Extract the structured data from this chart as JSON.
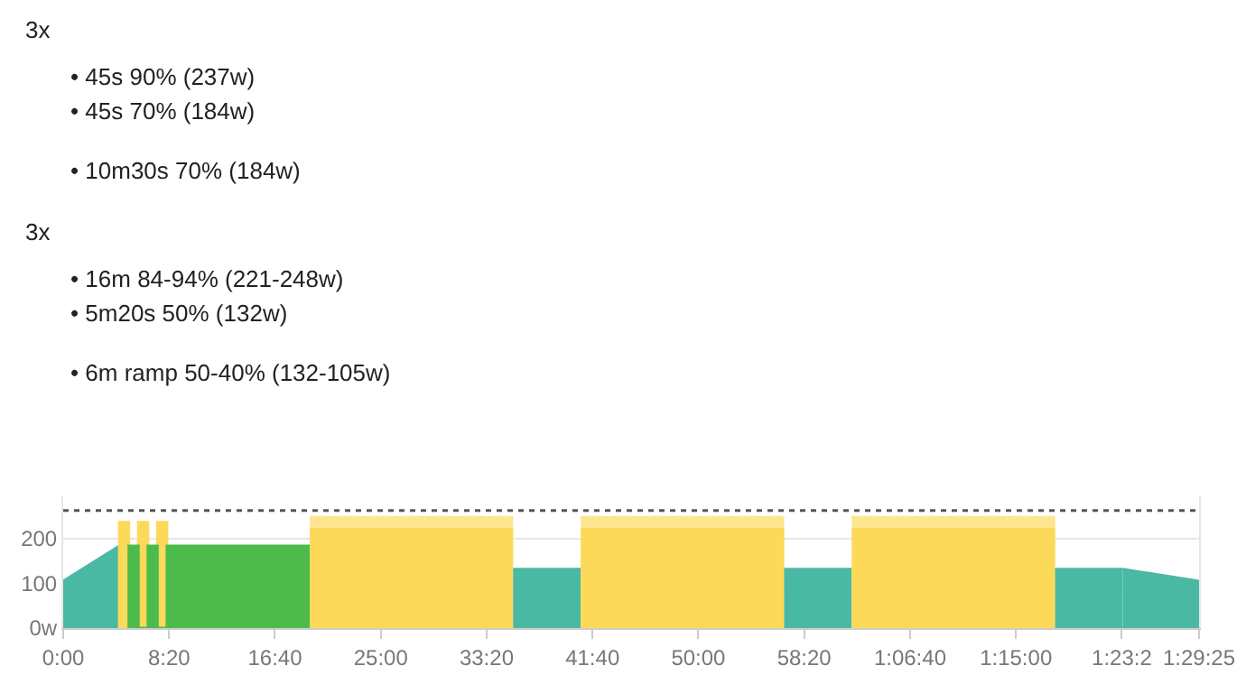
{
  "chart_data": {
    "type": "area",
    "annotations": [
      "3x",
      "• 45s 90% (237w)",
      "• 45s 70% (184w)",
      "• 10m30s 70% (184w)",
      "3x",
      "• 16m 84-94% (221-248w)",
      "• 5m20s 50% (132w)",
      "• 6m ramp 50-40% (132-105w)"
    ],
    "series": [
      {
        "color": "#4ab9a3",
        "x": [
          0,
          4.4167
        ],
        "values": [
          105,
          184
        ]
      },
      {
        "color": "#fdd95a",
        "x": [
          4.4167,
          4.4167,
          5.1667,
          5.1667,
          5.9167,
          5.9167,
          6.6667,
          6.6667,
          7.4167,
          7.4167,
          8.1667,
          8.1667
        ],
        "values": [
          0,
          237,
          237,
          0,
          0,
          237,
          237,
          0,
          0,
          237,
          237,
          0
        ]
      },
      {
        "color": "#4cbb4c",
        "x": [
          5.1667,
          5.1667,
          5.9167,
          5.9167,
          6.6667,
          6.6667,
          7.4167,
          7.4167,
          8.1667,
          8.1667,
          8.9167,
          19.4167,
          19.4167
        ],
        "values": [
          0,
          184,
          184,
          0,
          0,
          184,
          184,
          0,
          0,
          184,
          184,
          184,
          0
        ]
      },
      {
        "color": "#fde68f",
        "x": [
          19.4167,
          35.4167
        ],
        "values": [
          248,
          248
        ]
      },
      {
        "color": "#fdd95a",
        "x": [
          19.4167,
          35.4167
        ],
        "values": [
          221,
          221
        ]
      },
      {
        "color": "#4ab9a3",
        "x": [
          35.4167,
          40.75
        ],
        "values": [
          132,
          132
        ]
      },
      {
        "color": "#fde68f",
        "x": [
          40.75,
          56.75
        ],
        "values": [
          248,
          248
        ]
      },
      {
        "color": "#fdd95a",
        "x": [
          40.75,
          56.75
        ],
        "values": [
          221,
          221
        ]
      },
      {
        "color": "#4ab9a3",
        "x": [
          56.75,
          62.0833
        ],
        "values": [
          132,
          132
        ]
      },
      {
        "color": "#fde68f",
        "x": [
          62.0833,
          78.0833
        ],
        "values": [
          248,
          248
        ]
      },
      {
        "color": "#fdd95a",
        "x": [
          62.0833,
          78.0833
        ],
        "values": [
          221,
          221
        ]
      },
      {
        "color": "#4ab9a3",
        "x": [
          78.0833,
          83.4167
        ],
        "values": [
          132,
          132
        ]
      },
      {
        "color": "#4ab9a3",
        "x": [
          83.4167,
          89.4167
        ],
        "values": [
          132,
          105
        ]
      }
    ],
    "xlim": [
      0,
      89.4167
    ],
    "xticks": [
      {
        "value": 0,
        "label": "0:00"
      },
      {
        "value": 8.3333,
        "label": "8:20"
      },
      {
        "value": 16.6667,
        "label": "16:40"
      },
      {
        "value": 25,
        "label": "25:00"
      },
      {
        "value": 33.3333,
        "label": "33:20"
      },
      {
        "value": 41.6667,
        "label": "41:40"
      },
      {
        "value": 50,
        "label": "50:00"
      },
      {
        "value": 58.3333,
        "label": "58:20"
      },
      {
        "value": 66.6667,
        "label": "1:06:40"
      },
      {
        "value": 75,
        "label": "1:15:00"
      },
      {
        "value": 83.3333,
        "label": "1:23:2"
      },
      {
        "value": 89.4167,
        "label": "1:29:25"
      }
    ],
    "ylim": [
      0,
      295
    ],
    "yticks": [
      {
        "value": 0,
        "label": "0w"
      },
      100,
      200
    ],
    "ref_lines": [
      {
        "axis": "y",
        "value": 263,
        "color": "#555555",
        "line_style": "dotted"
      }
    ],
    "grid": "y"
  }
}
